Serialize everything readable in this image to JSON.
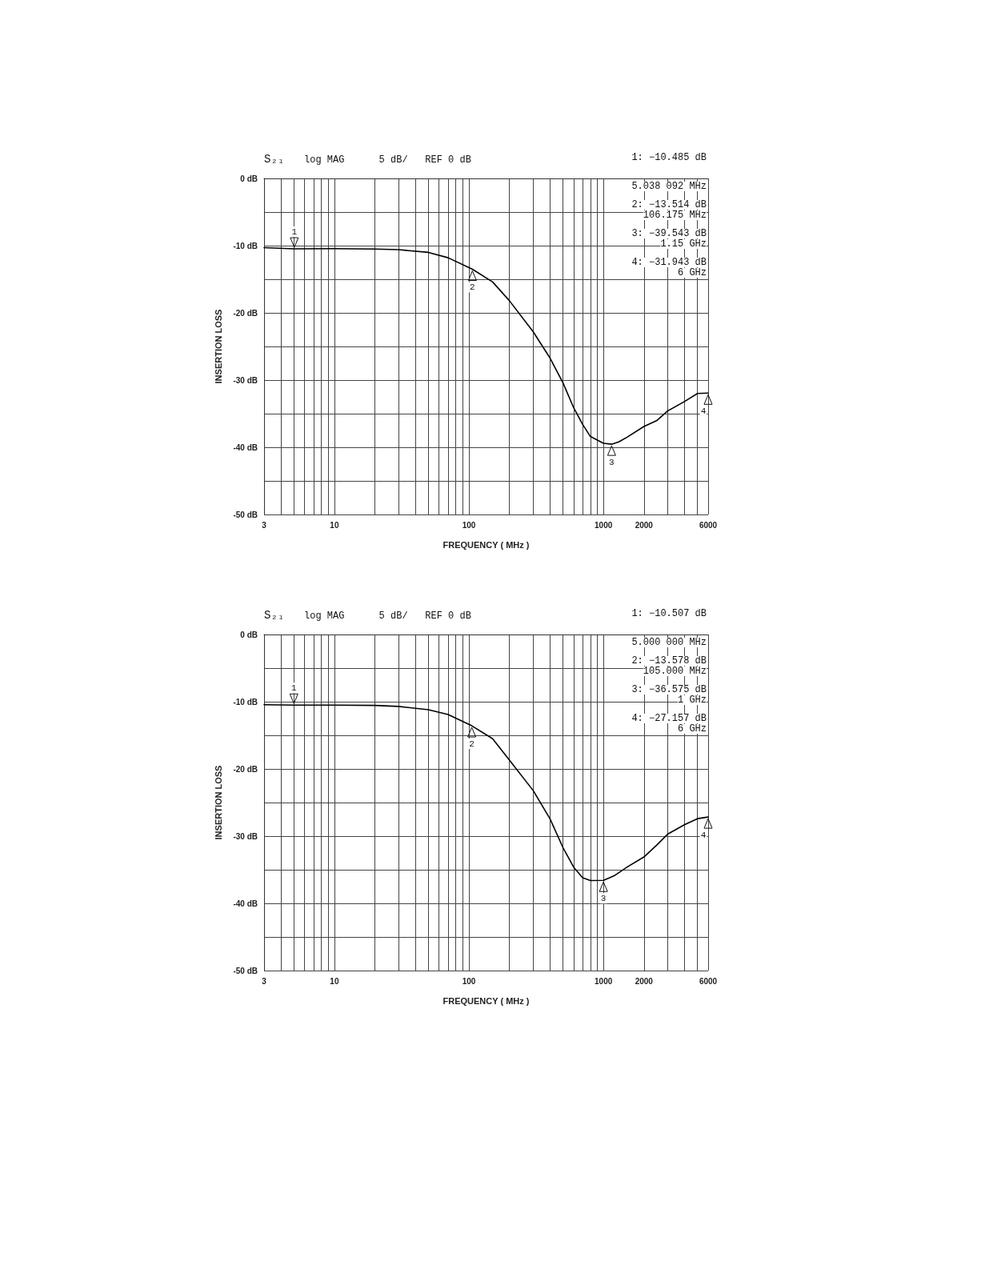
{
  "chart_data": [
    {
      "type": "line",
      "title": "S₂₁",
      "subtitle": "log MAG      5 dB/   REF 0 dB",
      "xlabel": "FREQUENCY ( MHz )",
      "ylabel": "INSERTION LOSS",
      "log": "x",
      "grid": true,
      "marker": "none",
      "line_style": "solid",
      "xlim": [
        3,
        6000
      ],
      "ylim": [
        -50,
        0
      ],
      "xticks": [
        3,
        {
          "value": 4,
          "label": null
        },
        {
          "value": 5,
          "label": null
        },
        {
          "value": 6,
          "label": null
        },
        {
          "value": 7,
          "label": null
        },
        {
          "value": 8,
          "label": null
        },
        {
          "value": 9,
          "label": null
        },
        10,
        {
          "value": 20,
          "label": null
        },
        {
          "value": 30,
          "label": null
        },
        {
          "value": 40,
          "label": null
        },
        {
          "value": 50,
          "label": null
        },
        {
          "value": 60,
          "label": null
        },
        {
          "value": 70,
          "label": null
        },
        {
          "value": 80,
          "label": null
        },
        {
          "value": 90,
          "label": null
        },
        100,
        {
          "value": 200,
          "label": null
        },
        {
          "value": 300,
          "label": null
        },
        {
          "value": 400,
          "label": null
        },
        {
          "value": 500,
          "label": null
        },
        {
          "value": 600,
          "label": null
        },
        {
          "value": 700,
          "label": null
        },
        {
          "value": 800,
          "label": null
        },
        {
          "value": 900,
          "label": null
        },
        1000,
        2000,
        {
          "value": 3000,
          "label": null
        },
        {
          "value": 4000,
          "label": null
        },
        {
          "value": 5000,
          "label": null
        },
        6000
      ],
      "yticks": [
        {
          "value": 0,
          "label": "0 dB"
        },
        {
          "value": -5,
          "label": null
        },
        {
          "value": -10,
          "label": "-10 dB"
        },
        {
          "value": -15,
          "label": null
        },
        {
          "value": -20,
          "label": "-20 dB"
        },
        {
          "value": -25,
          "label": null
        },
        {
          "value": -30,
          "label": "-30 dB"
        },
        {
          "value": -35,
          "label": null
        },
        {
          "value": -40,
          "label": "-40 dB"
        },
        {
          "value": -45,
          "label": null
        },
        {
          "value": -50,
          "label": "-50 dB"
        }
      ],
      "x": [
        3,
        5.038092,
        10,
        20,
        30,
        50,
        70,
        106.175,
        150,
        200,
        300,
        400,
        500,
        600,
        700,
        800,
        1000,
        1150,
        1300,
        1500,
        2000,
        2500,
        3000,
        4000,
        5000,
        6000
      ],
      "series": [
        {
          "color": "#000000",
          "values": [
            -10.3,
            -10.485,
            -10.45,
            -10.5,
            -10.6,
            -11.0,
            -11.8,
            -13.514,
            -15.4,
            -18.2,
            -22.8,
            -26.7,
            -30.4,
            -34.1,
            -36.6,
            -38.4,
            -39.4,
            -39.543,
            -39.2,
            -38.5,
            -36.9,
            -36.0,
            -34.6,
            -33.2,
            -32.0,
            -31.943
          ]
        }
      ],
      "annotations": [
        "1: −10.485 dB",
        "5.038 092 MHz",
        "2: −13.514 dB",
        "106.175 MHz",
        "3: −39.543 dB",
        "1.15 GHz",
        "4: −31.943 dB",
        "6 GHz",
        {
          "text": "1",
          "x": 5.038092,
          "y": -10.485
        },
        {
          "text": "2",
          "x": 106.175,
          "y": -13.514
        },
        {
          "text": "3",
          "x": 1150,
          "y": -39.543
        },
        {
          "text": "4",
          "x": 6000,
          "y": -31.943
        }
      ]
    },
    {
      "type": "line",
      "title": "S₂₁",
      "subtitle": "log MAG      5 dB/   REF 0 dB",
      "xlabel": "FREQUENCY ( MHz )",
      "ylabel": "INSERTION LOSS",
      "log": "x",
      "grid": true,
      "marker": "none",
      "line_style": "solid",
      "xlim": [
        3,
        6000
      ],
      "ylim": [
        -50,
        0
      ],
      "xticks": [
        3,
        {
          "value": 4,
          "label": null
        },
        {
          "value": 5,
          "label": null
        },
        {
          "value": 6,
          "label": null
        },
        {
          "value": 7,
          "label": null
        },
        {
          "value": 8,
          "label": null
        },
        {
          "value": 9,
          "label": null
        },
        10,
        {
          "value": 20,
          "label": null
        },
        {
          "value": 30,
          "label": null
        },
        {
          "value": 40,
          "label": null
        },
        {
          "value": 50,
          "label": null
        },
        {
          "value": 60,
          "label": null
        },
        {
          "value": 70,
          "label": null
        },
        {
          "value": 80,
          "label": null
        },
        {
          "value": 90,
          "label": null
        },
        100,
        {
          "value": 200,
          "label": null
        },
        {
          "value": 300,
          "label": null
        },
        {
          "value": 400,
          "label": null
        },
        {
          "value": 500,
          "label": null
        },
        {
          "value": 600,
          "label": null
        },
        {
          "value": 700,
          "label": null
        },
        {
          "value": 800,
          "label": null
        },
        {
          "value": 900,
          "label": null
        },
        1000,
        2000,
        {
          "value": 3000,
          "label": null
        },
        {
          "value": 4000,
          "label": null
        },
        {
          "value": 5000,
          "label": null
        },
        6000
      ],
      "yticks": [
        {
          "value": 0,
          "label": "0 dB"
        },
        {
          "value": -5,
          "label": null
        },
        {
          "value": -10,
          "label": "-10 dB"
        },
        {
          "value": -15,
          "label": null
        },
        {
          "value": -20,
          "label": "-20 dB"
        },
        {
          "value": -25,
          "label": null
        },
        {
          "value": -30,
          "label": "-30 dB"
        },
        {
          "value": -35,
          "label": null
        },
        {
          "value": -40,
          "label": "-40 dB"
        },
        {
          "value": -45,
          "label": null
        },
        {
          "value": -50,
          "label": "-50 dB"
        }
      ],
      "x": [
        3,
        5,
        10,
        20,
        30,
        50,
        70,
        105,
        150,
        200,
        300,
        400,
        500,
        600,
        700,
        800,
        1000,
        1200,
        1500,
        2000,
        2500,
        3000,
        4000,
        5000,
        6000
      ],
      "series": [
        {
          "color": "#000000",
          "values": [
            -10.45,
            -10.507,
            -10.5,
            -10.55,
            -10.7,
            -11.2,
            -11.9,
            -13.578,
            -15.5,
            -18.7,
            -23.2,
            -27.4,
            -31.7,
            -34.6,
            -36.2,
            -36.6,
            -36.575,
            -35.9,
            -34.6,
            -33.1,
            -31.3,
            -29.7,
            -28.3,
            -27.4,
            -27.157
          ]
        }
      ],
      "annotations": [
        "1: −10.507 dB",
        "5.000 000 MHz",
        "2: −13.578 dB",
        "105.000 MHz",
        "3: −36.575 dB",
        "1 GHz",
        "4: −27.157 dB",
        "6 GHz",
        {
          "text": "1",
          "x": 5,
          "y": -10.507
        },
        {
          "text": "2",
          "x": 105,
          "y": -13.578
        },
        {
          "text": "3",
          "x": 1000,
          "y": -36.575
        },
        {
          "text": "4",
          "x": 6000,
          "y": -27.157
        }
      ]
    }
  ]
}
